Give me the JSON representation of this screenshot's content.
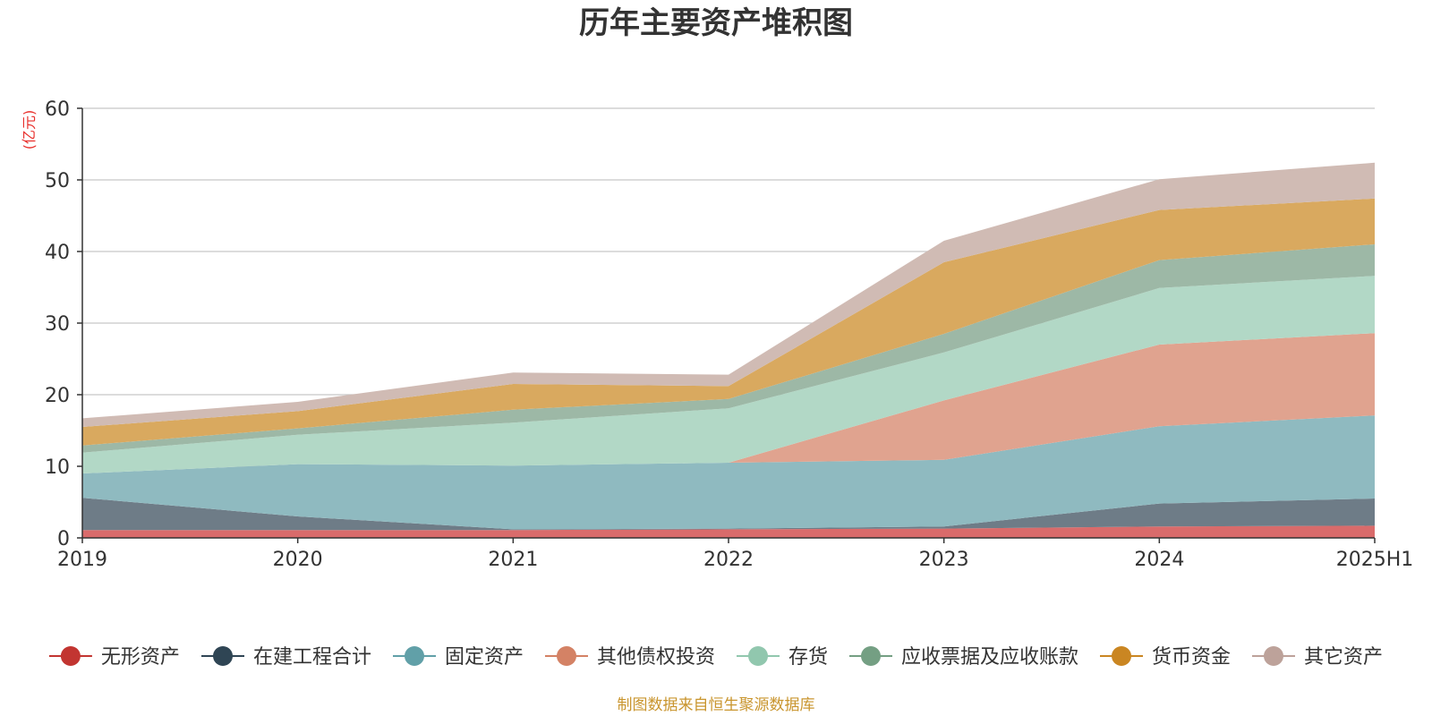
{
  "title": "历年主要资产堆积图",
  "source": "制图数据来自恒生聚源数据库",
  "colors": {
    "grid": "#c8c8c8",
    "axis": "#333333",
    "unit": "#e8302c",
    "source": "#c9952e"
  },
  "chart_data": {
    "type": "area",
    "stacked": true,
    "title": "历年主要资产堆积图",
    "ylabel": "(亿元)",
    "xlabel": "",
    "ylim": [
      0,
      60
    ],
    "yticks": [
      0,
      10,
      20,
      30,
      40,
      50,
      60
    ],
    "grid": true,
    "legend_position": "bottom",
    "categories": [
      "2019",
      "2020",
      "2021",
      "2022",
      "2023",
      "2024",
      "2025H1"
    ],
    "series": [
      {
        "name": "无形资产",
        "color": "#c23531",
        "legend_color": "#c23531",
        "fill": "#d96b6b",
        "values": [
          1.1,
          1.1,
          1.1,
          1.2,
          1.3,
          1.6,
          1.7
        ]
      },
      {
        "name": "在建工程合计",
        "color": "#2f4554",
        "legend_color": "#2f4554",
        "fill": "#6e7c87",
        "values": [
          4.5,
          1.9,
          0.1,
          0.1,
          0.3,
          3.2,
          3.8
        ]
      },
      {
        "name": "固定资产",
        "color": "#61a0a8",
        "legend_color": "#61a0a8",
        "fill": "#8fbac0",
        "values": [
          3.4,
          7.3,
          8.9,
          9.2,
          9.3,
          10.8,
          11.6
        ]
      },
      {
        "name": "其他债权投资",
        "color": "#d48265",
        "legend_color": "#d48265",
        "fill": "#e0a38f",
        "values": [
          0,
          0,
          0,
          0,
          8.3,
          11.4,
          11.5
        ]
      },
      {
        "name": "存货",
        "color": "#91c7ae",
        "legend_color": "#91c7ae",
        "fill": "#b2d8c6",
        "values": [
          2.9,
          4.1,
          6.0,
          7.6,
          6.7,
          7.9,
          8.0
        ]
      },
      {
        "name": "应收票据及应收账款",
        "color": "#749f83",
        "legend_color": "#749f83",
        "fill": "#9db8a6",
        "values": [
          1.0,
          0.9,
          1.8,
          1.3,
          2.6,
          3.9,
          4.4
        ]
      },
      {
        "name": "货币资金",
        "color": "#ca8622",
        "legend_color": "#ca8622",
        "fill": "#d9a95f",
        "values": [
          2.6,
          2.4,
          3.6,
          1.8,
          10.0,
          7.0,
          6.4
        ]
      },
      {
        "name": "其它资产",
        "color": "#bda29a",
        "legend_color": "#bda29a",
        "fill": "#d0bbb4",
        "values": [
          1.2,
          1.3,
          1.6,
          1.6,
          3.0,
          4.3,
          5.0
        ]
      }
    ]
  }
}
